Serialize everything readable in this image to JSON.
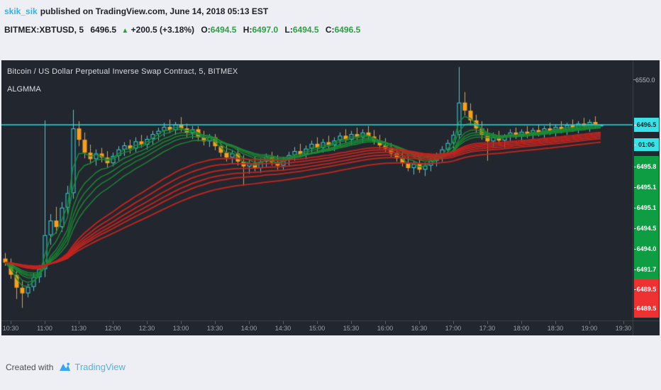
{
  "header": {
    "author": "skik_sik",
    "published_text": "published on TradingView.com, June 14, 2018 05:13 EST",
    "symbol_line": {
      "symbol_interval": "BITMEX:XBTUSD, 5",
      "last": "6496.5",
      "arrow": "▲",
      "change": "+200.5 (+3.18%)",
      "o_label": "O:",
      "o": "6494.5",
      "h_label": "H:",
      "h": "6497.0",
      "l_label": "L:",
      "l": "6494.5",
      "c_label": "C:",
      "c": "6496.5"
    }
  },
  "chart": {
    "title": "Bitcoin / US Dollar Perpetual Inverse Swap Contract, 5, BITMEX",
    "indicator": "ALGMMA",
    "price_axis": {
      "top_label": "6550.0",
      "current_price": "6496.5",
      "countdown": "01:06",
      "ma_labels_green": [
        "6495.8",
        "6495.1",
        "6495.1",
        "6494.5",
        "6494.0",
        "6491.7"
      ],
      "ma_labels_red": [
        "6489.5",
        "6489.5"
      ]
    },
    "time_axis": [
      "10:30",
      "11:00",
      "11:30",
      "12:00",
      "12:30",
      "13:00",
      "13:30",
      "14:00",
      "14:30",
      "15:00",
      "15:30",
      "16:00",
      "16:30",
      "17:00",
      "17:30",
      "18:00",
      "18:30",
      "19:00",
      "19:30"
    ],
    "colors": {
      "chart_bg": "#22262e",
      "candle_up": "#35d8e0",
      "candle_down": "#f5a021",
      "ma_short": "#1b8a35",
      "ma_long": "#c32520",
      "price_line": "#2fd7de",
      "label_cyan_bg": "#3be1e8",
      "label_green_bg": "#0f9d44",
      "label_red_bg": "#ee3232",
      "header_green": "#2f9e44",
      "link_blue": "#3bb0e0",
      "brand_blue": "#53b1e0"
    }
  },
  "footer": {
    "created_with": "Created with",
    "brand": "TradingView"
  },
  "chart_data": {
    "type": "candlestick",
    "title": "Bitcoin / US Dollar Perpetual Inverse Swap Contract, 5, BITMEX",
    "symbol": "BITMEX:XBTUSD",
    "interval_minutes": 5,
    "start_time": "10:25",
    "x_tick_labels": [
      "10:30",
      "11:00",
      "11:30",
      "12:00",
      "12:30",
      "13:00",
      "13:30",
      "14:00",
      "14:30",
      "15:00",
      "15:30",
      "16:00",
      "16:30",
      "17:00",
      "17:30",
      "18:00",
      "18:30",
      "19:00",
      "19:30"
    ],
    "visible_price_range": [
      6254,
      6576
    ],
    "price_line": 6496.5,
    "legend": "ALGMMA (multiple moving average ribbons: short group green, long group red)",
    "overlays": {
      "algmma": {
        "short_ema_periods": [
          3,
          5,
          8,
          10,
          12,
          15
        ],
        "long_ema_periods": [
          30,
          35,
          40,
          45,
          50,
          60
        ],
        "short_color": "#1b8a35",
        "long_color": "#c32520",
        "current_values_green": [
          6495.8,
          6495.1,
          6495.1,
          6494.5,
          6494.0,
          6491.7
        ],
        "current_values_red": [
          6489.5,
          6489.5
        ]
      }
    },
    "candles": [
      [
        6331,
        6338,
        6322,
        6326
      ],
      [
        6326,
        6331,
        6306,
        6311
      ],
      [
        6311,
        6316,
        6281,
        6295
      ],
      [
        6295,
        6303,
        6270,
        6288
      ],
      [
        6288,
        6300,
        6283,
        6296
      ],
      [
        6296,
        6313,
        6291,
        6308
      ],
      [
        6308,
        6323,
        6301,
        6318
      ],
      [
        6318,
        6502,
        6308,
        6360
      ],
      [
        6360,
        6386,
        6348,
        6378
      ],
      [
        6378,
        6395,
        6362,
        6370
      ],
      [
        6370,
        6401,
        6364,
        6394
      ],
      [
        6394,
        6421,
        6386,
        6412
      ],
      [
        6412,
        6515,
        6405,
        6492
      ],
      [
        6492,
        6501,
        6470,
        6478
      ],
      [
        6478,
        6487,
        6455,
        6462
      ],
      [
        6462,
        6472,
        6448,
        6454
      ],
      [
        6454,
        6466,
        6446,
        6461
      ],
      [
        6461,
        6468,
        6450,
        6456
      ],
      [
        6456,
        6464,
        6443,
        6449
      ],
      [
        6449,
        6462,
        6445,
        6458
      ],
      [
        6458,
        6470,
        6452,
        6466
      ],
      [
        6466,
        6475,
        6458,
        6471
      ],
      [
        6471,
        6478,
        6461,
        6467
      ],
      [
        6467,
        6481,
        6463,
        6476
      ],
      [
        6476,
        6484,
        6468,
        6472
      ],
      [
        6472,
        6483,
        6466,
        6479
      ],
      [
        6479,
        6489,
        6472,
        6485
      ],
      [
        6485,
        6493,
        6477,
        6489
      ],
      [
        6489,
        6499,
        6482,
        6494
      ],
      [
        6494,
        6503,
        6486,
        6490
      ],
      [
        6490,
        6500,
        6484,
        6497
      ],
      [
        6497,
        6506,
        6488,
        6492
      ],
      [
        6492,
        6498,
        6481,
        6486
      ],
      [
        6486,
        6495,
        6479,
        6491
      ],
      [
        6491,
        6495,
        6476,
        6481
      ],
      [
        6481,
        6489,
        6471,
        6476
      ],
      [
        6476,
        6485,
        6469,
        6481
      ],
      [
        6481,
        6485,
        6465,
        6470
      ],
      [
        6470,
        6477,
        6457,
        6462
      ],
      [
        6462,
        6471,
        6451,
        6456
      ],
      [
        6456,
        6465,
        6448,
        6461
      ],
      [
        6461,
        6467,
        6446,
        6451
      ],
      [
        6451,
        6459,
        6421,
        6445
      ],
      [
        6445,
        6453,
        6436,
        6449
      ],
      [
        6449,
        6457,
        6439,
        6443
      ],
      [
        6443,
        6455,
        6437,
        6451
      ],
      [
        6451,
        6461,
        6444,
        6457
      ],
      [
        6457,
        6463,
        6446,
        6450
      ],
      [
        6450,
        6459,
        6441,
        6446
      ],
      [
        6446,
        6457,
        6440,
        6453
      ],
      [
        6453,
        6463,
        6446,
        6459
      ],
      [
        6459,
        6469,
        6452,
        6464
      ],
      [
        6464,
        6473,
        6456,
        6460
      ],
      [
        6460,
        6471,
        6454,
        6467
      ],
      [
        6467,
        6477,
        6460,
        6473
      ],
      [
        6473,
        6481,
        6463,
        6468
      ],
      [
        6468,
        6479,
        6462,
        6475
      ],
      [
        6475,
        6483,
        6466,
        6471
      ],
      [
        6471,
        6481,
        6464,
        6477
      ],
      [
        6477,
        6487,
        6470,
        6483
      ],
      [
        6483,
        6491,
        6474,
        6478
      ],
      [
        6478,
        6489,
        6472,
        6485
      ],
      [
        6485,
        6493,
        6477,
        6481
      ],
      [
        6481,
        6491,
        6474,
        6487
      ],
      [
        6487,
        6495,
        6479,
        6482
      ],
      [
        6482,
        6490,
        6472,
        6476
      ],
      [
        6476,
        6484,
        6467,
        6471
      ],
      [
        6471,
        6480,
        6463,
        6467
      ],
      [
        6467,
        6474,
        6457,
        6461
      ],
      [
        6461,
        6470,
        6451,
        6455
      ],
      [
        6455,
        6463,
        6445,
        6449
      ],
      [
        6449,
        6457,
        6439,
        6443
      ],
      [
        6443,
        6452,
        6435,
        6448
      ],
      [
        6448,
        6454,
        6437,
        6441
      ],
      [
        6441,
        6450,
        6433,
        6446
      ],
      [
        6446,
        6456,
        6439,
        6452
      ],
      [
        6452,
        6462,
        6445,
        6458
      ],
      [
        6458,
        6470,
        6451,
        6466
      ],
      [
        6466,
        6478,
        6459,
        6474
      ],
      [
        6474,
        6489,
        6467,
        6484
      ],
      [
        6484,
        6568,
        6478,
        6524
      ],
      [
        6524,
        6537,
        6508,
        6514
      ],
      [
        6514,
        6523,
        6496,
        6502
      ],
      [
        6502,
        6509,
        6486,
        6492
      ],
      [
        6492,
        6501,
        6478,
        6484
      ],
      [
        6484,
        6492,
        6452,
        6476
      ],
      [
        6476,
        6487,
        6469,
        6481
      ],
      [
        6481,
        6489,
        6472,
        6477
      ],
      [
        6477,
        6485,
        6468,
        6483
      ],
      [
        6483,
        6491,
        6476,
        6487
      ],
      [
        6487,
        6493,
        6479,
        6482
      ],
      [
        6482,
        6491,
        6476,
        6488
      ],
      [
        6488,
        6495,
        6480,
        6484
      ],
      [
        6484,
        6493,
        6478,
        6490
      ],
      [
        6490,
        6497,
        6482,
        6486
      ],
      [
        6486,
        6495,
        6480,
        6492
      ],
      [
        6492,
        6499,
        6484,
        6488
      ],
      [
        6488,
        6497,
        6482,
        6494
      ],
      [
        6494,
        6501,
        6486,
        6490
      ],
      [
        6490,
        6499,
        6484,
        6496
      ],
      [
        6496,
        6503,
        6488,
        6492
      ],
      [
        6492,
        6501,
        6486,
        6498
      ],
      [
        6498,
        6505,
        6490,
        6494
      ],
      [
        6494,
        6503,
        6488,
        6500
      ],
      [
        6500,
        6507,
        6492,
        6496
      ],
      [
        6494.5,
        6497,
        6494.5,
        6496.5
      ]
    ]
  }
}
